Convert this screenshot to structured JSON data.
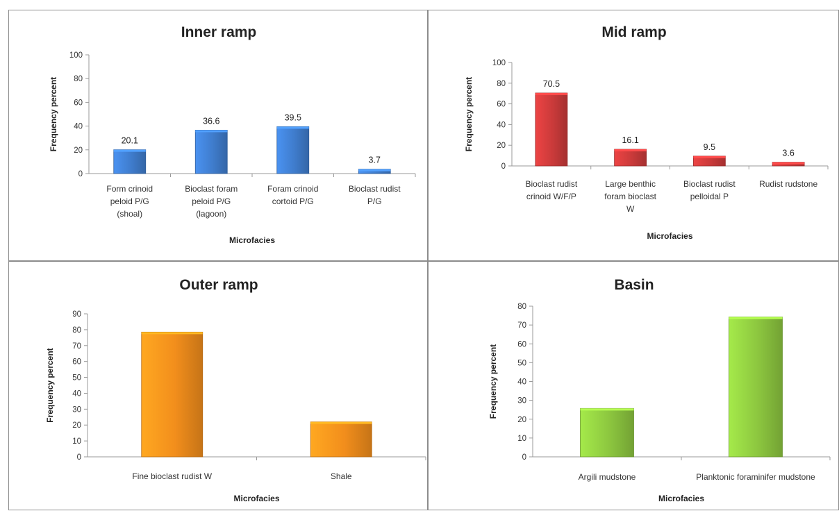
{
  "chart_data": [
    {
      "type": "bar",
      "title": "Inner ramp",
      "xlabel": "Microfacies",
      "ylabel": "Frequency percent",
      "ylim": [
        0,
        100
      ],
      "yticks": [
        0,
        20,
        40,
        60,
        80,
        100
      ],
      "color": "#3f7ccc",
      "grid": false,
      "categories": [
        [
          "Form crinoid",
          "peloid P/G",
          "(shoal)"
        ],
        [
          "Bioclast foram",
          "peloid P/G",
          "(lagoon)"
        ],
        [
          "Foram crinoid",
          "cortoid P/G"
        ],
        [
          "Bioclast rudist",
          "P/G"
        ]
      ],
      "values": [
        20.1,
        36.6,
        39.5,
        3.7
      ],
      "data_labels": [
        "20.1",
        "36.6",
        "39.5",
        "3.7"
      ]
    },
    {
      "type": "bar",
      "title": "Mid ramp",
      "xlabel": "Microfacies",
      "ylabel": "Frequency percent",
      "ylim": [
        0,
        100
      ],
      "yticks": [
        0,
        20,
        40,
        60,
        80,
        100
      ],
      "color": "#c93a3a",
      "grid": false,
      "categories": [
        [
          "Bioclast rudist",
          "crinoid W/F/P"
        ],
        [
          "Large benthic",
          "foram bioclast",
          "W"
        ],
        [
          "Bioclast rudist",
          "pelloidal P"
        ],
        [
          "Rudist rudstone"
        ]
      ],
      "values": [
        70.5,
        16.1,
        9.5,
        3.6
      ],
      "data_labels": [
        "70.5",
        "16.1",
        "9.5",
        "3.6"
      ]
    },
    {
      "type": "bar",
      "title": "Outer ramp",
      "xlabel": "Microfacies",
      "ylabel": "Frequency percent",
      "ylim": [
        0,
        90
      ],
      "yticks": [
        0,
        10,
        20,
        30,
        40,
        50,
        60,
        70,
        80,
        90
      ],
      "color": "#f28e1c",
      "grid": false,
      "categories": [
        [
          "Fine bioclast rudist W"
        ],
        [
          "Shale"
        ]
      ],
      "values": [
        78.5,
        22
      ],
      "data_labels": []
    },
    {
      "type": "bar",
      "title": "Basin",
      "xlabel": "Microfacies",
      "ylabel": "Frequency percent",
      "ylim": [
        0,
        80
      ],
      "yticks": [
        0,
        10,
        20,
        30,
        40,
        50,
        60,
        70,
        80
      ],
      "color": "#8cc63f",
      "grid": false,
      "categories": [
        [
          "Argili mudstone"
        ],
        [
          "Planktonic foraminifer mudstone"
        ]
      ],
      "values": [
        25.7,
        74.3
      ],
      "data_labels": []
    }
  ]
}
